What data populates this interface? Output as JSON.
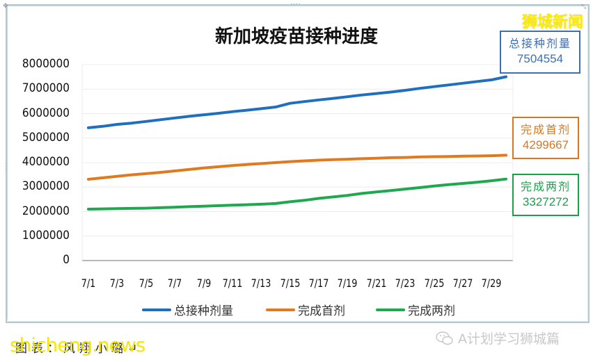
{
  "chart_data": {
    "type": "line",
    "title": "新加坡疫苗接种进度",
    "xlabel": "",
    "ylabel": "",
    "ylim": [
      0,
      8000000
    ],
    "yticks": [
      0,
      1000000,
      2000000,
      3000000,
      4000000,
      5000000,
      6000000,
      7000000,
      8000000
    ],
    "grid": true,
    "legend_position": "bottom",
    "x": [
      "7/1",
      "7/2",
      "7/3",
      "7/4",
      "7/5",
      "7/6",
      "7/7",
      "7/8",
      "7/9",
      "7/10",
      "7/11",
      "7/12",
      "7/13",
      "7/14",
      "7/15",
      "7/16",
      "7/17",
      "7/18",
      "7/19",
      "7/20",
      "7/21",
      "7/22",
      "7/23",
      "7/24",
      "7/25",
      "7/26",
      "7/27",
      "7/28",
      "7/29",
      "7/30"
    ],
    "xtick_labels": [
      "7/1",
      "7/3",
      "7/5",
      "7/7",
      "7/9",
      "7/11",
      "7/13",
      "7/15",
      "7/17",
      "7/19",
      "7/21",
      "7/23",
      "7/25",
      "7/27",
      "7/29"
    ],
    "series": [
      {
        "name": "总接种剂量",
        "color": "#1f6fbf",
        "values": [
          5420000,
          5480000,
          5560000,
          5610000,
          5680000,
          5750000,
          5820000,
          5890000,
          5950000,
          6010000,
          6080000,
          6140000,
          6200000,
          6270000,
          6420000,
          6490000,
          6560000,
          6620000,
          6690000,
          6760000,
          6820000,
          6880000,
          6950000,
          7030000,
          7100000,
          7170000,
          7240000,
          7310000,
          7380000,
          7504554
        ]
      },
      {
        "name": "完成首剂",
        "color": "#e07a1f",
        "values": [
          3320000,
          3380000,
          3440000,
          3500000,
          3550000,
          3600000,
          3660000,
          3720000,
          3780000,
          3830000,
          3880000,
          3920000,
          3960000,
          4000000,
          4040000,
          4070000,
          4100000,
          4120000,
          4140000,
          4160000,
          4180000,
          4200000,
          4210000,
          4230000,
          4240000,
          4250000,
          4260000,
          4270000,
          4280000,
          4299667
        ]
      },
      {
        "name": "完成两剂",
        "color": "#1fa84f",
        "values": [
          2100000,
          2110000,
          2120000,
          2130000,
          2140000,
          2160000,
          2180000,
          2200000,
          2220000,
          2240000,
          2260000,
          2280000,
          2300000,
          2330000,
          2400000,
          2460000,
          2540000,
          2600000,
          2660000,
          2740000,
          2800000,
          2860000,
          2920000,
          2980000,
          3040000,
          3100000,
          3150000,
          3200000,
          3260000,
          3327272
        ]
      }
    ],
    "annotations": [
      {
        "label": "总接种剂量",
        "value": "7504554",
        "color": "#3b6fb6"
      },
      {
        "label": "完成首剂",
        "value": "4299667",
        "color": "#d9771e"
      },
      {
        "label": "完成两剂",
        "value": "3327272",
        "color": "#19a14a"
      }
    ]
  },
  "title": "新加坡疫苗接种进度",
  "y_axis": {
    "labels": [
      "8000000",
      "7000000",
      "6000000",
      "5000000",
      "4000000",
      "3000000",
      "2000000",
      "1000000",
      "0"
    ]
  },
  "x_axis": {
    "labels": [
      "7/1",
      "7/3",
      "7/5",
      "7/7",
      "7/9",
      "7/11",
      "7/13",
      "7/15",
      "7/17",
      "7/19",
      "7/21",
      "7/23",
      "7/25",
      "7/27",
      "7/29"
    ]
  },
  "legend": {
    "items": [
      {
        "label": "总接种剂量",
        "color": "#1f6fbf"
      },
      {
        "label": "完成首剂",
        "color": "#e07a1f"
      },
      {
        "label": "完成两剂",
        "color": "#1fa84f"
      }
    ]
  },
  "callouts": {
    "total": {
      "label": "总接种剂量",
      "value": "7504554",
      "color": "#3b6fb6"
    },
    "first": {
      "label": "完成首剂",
      "value": "4299667",
      "color": "#d9771e"
    },
    "second": {
      "label": "完成两剂",
      "value": "3327272",
      "color": "#19a14a"
    }
  },
  "brand": "狮城新闻",
  "source_line": "图表：风翔小璐↵",
  "watermark_left": "shicheng.news",
  "watermark_right": "A计划学习狮城篇"
}
